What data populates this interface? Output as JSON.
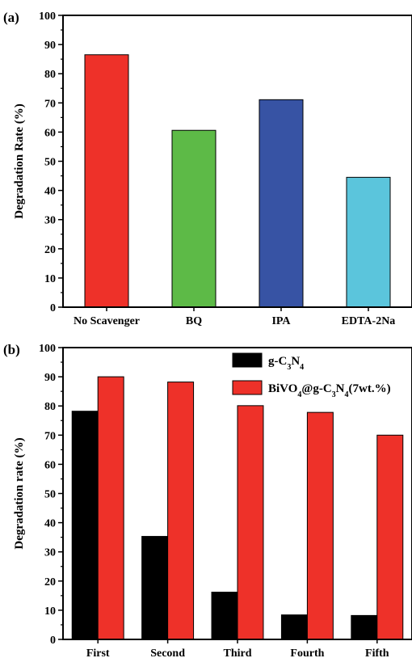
{
  "chart_data": [
    {
      "type": "bar",
      "panel_label": "(a)",
      "categories": [
        "No Scavenger",
        "BQ",
        "IPA",
        "EDTA-2Na"
      ],
      "values": [
        86.5,
        60.6,
        71.1,
        44.5
      ],
      "colors": [
        "#ee3129",
        "#5dba47",
        "#3753a4",
        "#5bc5dc"
      ],
      "xlabel": "",
      "ylabel": "Degradation Rate (%)",
      "ylim": [
        0,
        100
      ],
      "yticks": [
        0,
        10,
        20,
        30,
        40,
        50,
        60,
        70,
        80,
        90,
        100
      ],
      "grid": false
    },
    {
      "type": "bar",
      "panel_label": "(b)",
      "categories": [
        "First",
        "Second",
        "Third",
        "Fourth",
        "Fifth"
      ],
      "series": [
        {
          "name": "g-C3N4",
          "name_parts": [
            [
              "g-C",
              ""
            ],
            [
              "3",
              "sub"
            ],
            [
              "N",
              ""
            ],
            [
              "4",
              "sub"
            ]
          ],
          "color": "#000000",
          "values": [
            78.2,
            35.3,
            16.2,
            8.4,
            8.2
          ]
        },
        {
          "name": "BiVO4@g-C3N4(7wt.%)",
          "name_parts": [
            [
              "BiVO",
              ""
            ],
            [
              "4",
              "sub"
            ],
            [
              "@g-C",
              ""
            ],
            [
              "3",
              "sub"
            ],
            [
              "N",
              ""
            ],
            [
              "4",
              "sub"
            ],
            [
              "(7wt.%)",
              ""
            ]
          ],
          "color": "#ee3129",
          "values": [
            90.0,
            88.2,
            80.1,
            77.8,
            70.0
          ]
        }
      ],
      "xlabel": "",
      "ylabel": "Degradation rate (%)",
      "ylim": [
        0,
        100
      ],
      "yticks": [
        0,
        10,
        20,
        30,
        40,
        50,
        60,
        70,
        80,
        90,
        100
      ],
      "legend_position": "top-right",
      "grid": false
    }
  ]
}
